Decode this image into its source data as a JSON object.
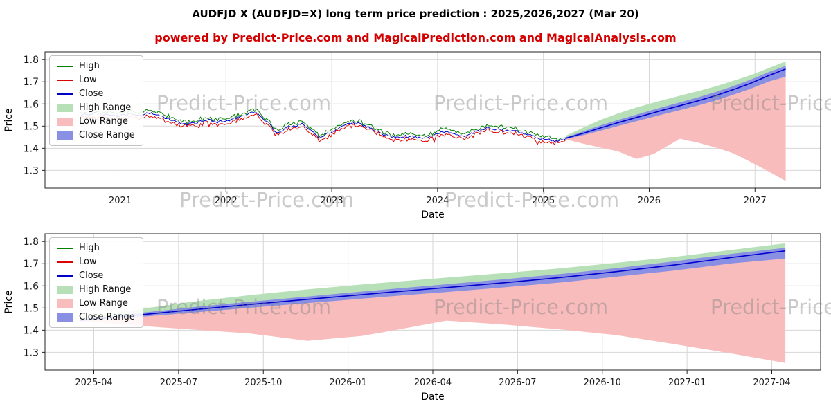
{
  "page": {
    "title": "AUDFJD X (AUDFJD=X) long term price prediction : 2025,2026,2027 (Mar 20)",
    "subtitle": "powered by Predict-Price.com and MagicalPrediction.com and MagicalAnalysis.com"
  },
  "watermark": {
    "text": "Predict-Price.com"
  },
  "colors": {
    "high": "#007f00",
    "low": "#dd0000",
    "close": "#0000cd",
    "high_range": "#b8e0b8",
    "low_range": "#f9bcbc",
    "close_range": "#8990e4",
    "subtitle": "#d40000",
    "grid": "#d6d6d6",
    "frame": "#222222",
    "tick_text": "#1a1a1a",
    "watermark": "#808080"
  },
  "legend": [
    {
      "label": "High",
      "type": "line",
      "color_key": "high"
    },
    {
      "label": "Low",
      "type": "line",
      "color_key": "low"
    },
    {
      "label": "Close",
      "type": "line",
      "color_key": "close"
    },
    {
      "label": "High Range",
      "type": "patch",
      "color_key": "high_range"
    },
    {
      "label": "Low Range",
      "type": "patch",
      "color_key": "low_range"
    },
    {
      "label": "Close Range",
      "type": "patch",
      "color_key": "close_range"
    }
  ],
  "chart_data": {
    "type": "line",
    "title": "AUDFJD X (AUDFJD=X) long term price prediction : 2025,2026,2027 (Mar 20)",
    "series_names": [
      "High",
      "Low",
      "Close",
      "High Range",
      "Low Range",
      "Close Range"
    ],
    "historical": {
      "x": [
        2020.62,
        2020.7,
        2020.78,
        2020.86,
        2020.94,
        2021.02,
        2021.1,
        2021.2,
        2021.28,
        2021.36,
        2021.44,
        2021.52,
        2021.6,
        2021.68,
        2021.76,
        2021.84,
        2021.92,
        2022.0,
        2022.08,
        2022.16,
        2022.24,
        2022.32,
        2022.4,
        2022.48,
        2022.56,
        2022.64,
        2022.72,
        2022.8,
        2022.88,
        2022.96,
        2023.04,
        2023.12,
        2023.2,
        2023.28,
        2023.36,
        2023.44,
        2023.52,
        2023.6,
        2023.68,
        2023.76,
        2023.84,
        2023.92,
        2024.0,
        2024.08,
        2024.16,
        2024.24,
        2024.32,
        2024.4,
        2024.48,
        2024.56,
        2024.64,
        2024.72,
        2024.8,
        2024.88,
        2024.96,
        2025.04,
        2025.12,
        2025.21
      ],
      "close": [
        1.548,
        1.555,
        1.56,
        1.552,
        1.545,
        1.55,
        1.556,
        1.552,
        1.56,
        1.55,
        1.536,
        1.52,
        1.506,
        1.51,
        1.52,
        1.526,
        1.518,
        1.524,
        1.532,
        1.545,
        1.562,
        1.55,
        1.515,
        1.47,
        1.492,
        1.503,
        1.508,
        1.478,
        1.448,
        1.468,
        1.482,
        1.502,
        1.516,
        1.507,
        1.49,
        1.474,
        1.456,
        1.448,
        1.452,
        1.456,
        1.448,
        1.452,
        1.468,
        1.478,
        1.463,
        1.455,
        1.466,
        1.48,
        1.492,
        1.486,
        1.478,
        1.483,
        1.472,
        1.458,
        1.444,
        1.438,
        1.432,
        1.443
      ]
    },
    "prediction": {
      "x": [
        2025.21,
        2025.38,
        2025.54,
        2025.71,
        2025.88,
        2026.04,
        2026.13,
        2026.29,
        2026.46,
        2026.63,
        2026.79,
        2026.96,
        2027.13,
        2027.29
      ],
      "close": [
        1.445,
        1.468,
        1.492,
        1.516,
        1.539,
        1.56,
        1.572,
        1.592,
        1.614,
        1.638,
        1.664,
        1.694,
        1.728,
        1.758
      ],
      "close_hi": [
        1.449,
        1.477,
        1.503,
        1.528,
        1.552,
        1.574,
        1.586,
        1.607,
        1.63,
        1.654,
        1.68,
        1.71,
        1.744,
        1.772
      ],
      "close_lo": [
        1.441,
        1.459,
        1.479,
        1.501,
        1.522,
        1.542,
        1.553,
        1.572,
        1.593,
        1.616,
        1.641,
        1.669,
        1.701,
        1.723
      ],
      "high_top": [
        1.456,
        1.494,
        1.528,
        1.558,
        1.584,
        1.606,
        1.617,
        1.637,
        1.658,
        1.68,
        1.704,
        1.73,
        1.762,
        1.792
      ],
      "low_bot": [
        1.44,
        1.42,
        1.403,
        1.385,
        1.352,
        1.374,
        1.398,
        1.443,
        1.425,
        1.403,
        1.378,
        1.338,
        1.295,
        1.252
      ]
    },
    "charts": [
      {
        "name": "history-with-forecast",
        "xlabel": "Date",
        "ylabel": "Price",
        "xlim": [
          2020.29,
          2027.62
        ],
        "ylim": [
          1.22,
          1.835
        ],
        "show_historical": true,
        "yticks": [
          {
            "v": 1.3,
            "label": "1.3"
          },
          {
            "v": 1.4,
            "label": "1.4"
          },
          {
            "v": 1.5,
            "label": "1.5"
          },
          {
            "v": 1.6,
            "label": "1.6"
          },
          {
            "v": 1.7,
            "label": "1.7"
          },
          {
            "v": 1.8,
            "label": "1.8"
          }
        ],
        "xticks": [
          {
            "v": 2021,
            "label": "2021"
          },
          {
            "v": 2022,
            "label": "2022"
          },
          {
            "v": 2023,
            "label": "2023"
          },
          {
            "v": 2024,
            "label": "2024"
          },
          {
            "v": 2025,
            "label": "2025"
          },
          {
            "v": 2026,
            "label": "2026"
          },
          {
            "v": 2027,
            "label": "2027"
          }
        ]
      },
      {
        "name": "forecast-detail",
        "xlabel": "Date",
        "ylabel": "Price",
        "xlim": [
          2025.106,
          2027.394
        ],
        "ylim": [
          1.22,
          1.835
        ],
        "show_historical": false,
        "yticks": [
          {
            "v": 1.3,
            "label": "1.3"
          },
          {
            "v": 1.4,
            "label": "1.4"
          },
          {
            "v": 1.5,
            "label": "1.5"
          },
          {
            "v": 1.6,
            "label": "1.6"
          },
          {
            "v": 1.7,
            "label": "1.7"
          },
          {
            "v": 1.8,
            "label": "1.8"
          }
        ],
        "xticks": [
          {
            "v": 2025.25,
            "label": "2025-04"
          },
          {
            "v": 2025.5,
            "label": "2025-07"
          },
          {
            "v": 2025.75,
            "label": "2025-10"
          },
          {
            "v": 2026.0,
            "label": "2026-01"
          },
          {
            "v": 2026.25,
            "label": "2026-04"
          },
          {
            "v": 2026.5,
            "label": "2026-07"
          },
          {
            "v": 2026.75,
            "label": "2026-10"
          },
          {
            "v": 2027.0,
            "label": "2027-01"
          },
          {
            "v": 2027.25,
            "label": "2027-04"
          }
        ]
      }
    ]
  }
}
